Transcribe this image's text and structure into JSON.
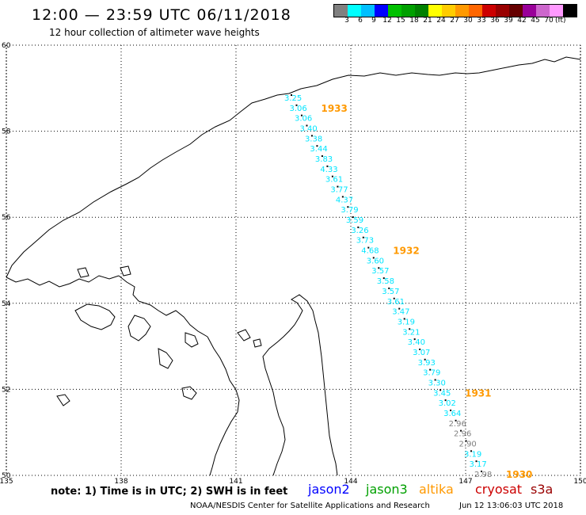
{
  "header": {
    "title": "12:00 — 23:59 UTC 06/11/2018",
    "subtitle": "12 hour collection of altimeter wave heights"
  },
  "scale": {
    "colors": [
      "#808080",
      "#00ffff",
      "#00bfff",
      "#0000ff",
      "#00c000",
      "#00a000",
      "#008000",
      "#ffff00",
      "#ffcc00",
      "#ff9900",
      "#ff6600",
      "#cc0000",
      "#990000",
      "#660000",
      "#990099",
      "#cc66cc",
      "#ff99ff",
      "#000000"
    ],
    "labels": [
      "3",
      "6",
      "9",
      "12",
      "15",
      "18",
      "21",
      "24",
      "27",
      "30",
      "33",
      "36",
      "39",
      "42",
      "45",
      "70"
    ],
    "unit": "(ft)"
  },
  "axes": {
    "lon_ticks": [
      "135",
      "138",
      "141",
      "144",
      "147",
      "150"
    ],
    "lat_ticks": [
      "60",
      "58",
      "56",
      "54",
      "52",
      "50"
    ]
  },
  "footer": {
    "note": "note:  1) Time is in UTC;  2) SWH is in feet",
    "satellites": [
      {
        "name": "jason2",
        "color": "#0000ff"
      },
      {
        "name": "jason3",
        "color": "#00a000"
      },
      {
        "name": "altika",
        "color": "#ff9900"
      },
      {
        "name": "cryosat",
        "color": "#cc0000"
      },
      {
        "name": "s3a",
        "color": "#990000"
      }
    ],
    "credit": "NOAA/NESDIS Center for Satellite Applications and Research",
    "timestamp": "Jun 12 13:06:03 UTC 2018"
  },
  "map_data": {
    "extent": {
      "lon": [
        135,
        150
      ],
      "lat": [
        50,
        60
      ]
    },
    "track_color": "#00e5ff",
    "gray_color": "#808080",
    "time_color": "#ff9900",
    "times": [
      "1933",
      "1932",
      "1931",
      "1930"
    ],
    "observations": [
      {
        "v": "3.25",
        "c": "cyan"
      },
      {
        "v": "3.06",
        "c": "cyan"
      },
      {
        "v": "3.06",
        "c": "cyan"
      },
      {
        "v": "3.40",
        "c": "cyan"
      },
      {
        "v": "3.38",
        "c": "cyan"
      },
      {
        "v": "3.44",
        "c": "cyan"
      },
      {
        "v": "3.83",
        "c": "cyan"
      },
      {
        "v": "4.33",
        "c": "cyan"
      },
      {
        "v": "3.61",
        "c": "cyan"
      },
      {
        "v": "3.77",
        "c": "cyan"
      },
      {
        "v": "4.37",
        "c": "cyan"
      },
      {
        "v": "3.79",
        "c": "cyan"
      },
      {
        "v": "3.59",
        "c": "cyan"
      },
      {
        "v": "3.26",
        "c": "cyan"
      },
      {
        "v": "3.73",
        "c": "cyan"
      },
      {
        "v": "4.68",
        "c": "cyan"
      },
      {
        "v": "3.60",
        "c": "cyan"
      },
      {
        "v": "3.57",
        "c": "cyan"
      },
      {
        "v": "3.58",
        "c": "cyan"
      },
      {
        "v": "3.57",
        "c": "cyan"
      },
      {
        "v": "3.61",
        "c": "cyan"
      },
      {
        "v": "3.47",
        "c": "cyan"
      },
      {
        "v": "3.19",
        "c": "cyan"
      },
      {
        "v": "3.21",
        "c": "cyan"
      },
      {
        "v": "3.40",
        "c": "cyan"
      },
      {
        "v": "3.07",
        "c": "cyan"
      },
      {
        "v": "3.93",
        "c": "cyan"
      },
      {
        "v": "3.79",
        "c": "cyan"
      },
      {
        "v": "3.30",
        "c": "cyan"
      },
      {
        "v": "3.45",
        "c": "cyan"
      },
      {
        "v": "3.02",
        "c": "cyan"
      },
      {
        "v": "3.64",
        "c": "cyan"
      },
      {
        "v": "2.96",
        "c": "gray"
      },
      {
        "v": "2.96",
        "c": "gray"
      },
      {
        "v": "2.90",
        "c": "gray"
      },
      {
        "v": "3.19",
        "c": "cyan"
      },
      {
        "v": "3.17",
        "c": "cyan"
      },
      {
        "v": "2.98",
        "c": "gray"
      }
    ]
  }
}
